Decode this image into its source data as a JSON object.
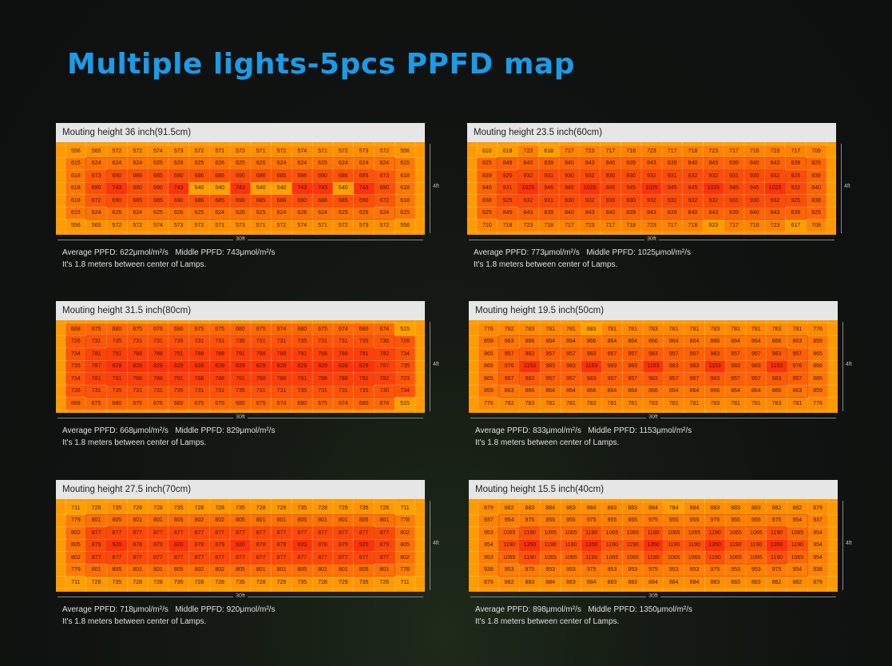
{
  "page_title": "Multiple lights-5pcs PPFD map",
  "chart_data": [
    {
      "type": "heatmap",
      "title": "Mouting height 36 inch(91.5cm)",
      "width_label": "30ft",
      "depth_label": "4ft",
      "average_text": "Average PPFD: 622μmol/m²/s",
      "middle_text": "Middle PPFD: 743μmol/m²/s",
      "note": "It's 1.8 meters between center of Lamps.",
      "values": [
        [
          556,
          565,
          572,
          572,
          574,
          573,
          572,
          571,
          573,
          571,
          572,
          574,
          571,
          572,
          573,
          572,
          556
        ],
        [
          615,
          624,
          624,
          624,
          625,
          626,
          625,
          626,
          625,
          626,
          624,
          624,
          625,
          624,
          624,
          624,
          615
        ],
        [
          618,
          673,
          690,
          686,
          685,
          690,
          686,
          685,
          690,
          686,
          685,
          686,
          690,
          686,
          685,
          673,
          618
        ],
        [
          618,
          690,
          743,
          690,
          690,
          743,
          540,
          540,
          743,
          540,
          540,
          743,
          743,
          540,
          743,
          690,
          618
        ],
        [
          618,
          672,
          690,
          685,
          685,
          690,
          686,
          685,
          690,
          685,
          686,
          690,
          686,
          685,
          690,
          672,
          618
        ],
        [
          615,
          624,
          626,
          624,
          625,
          626,
          625,
          624,
          626,
          625,
          624,
          626,
          624,
          625,
          626,
          624,
          615
        ],
        [
          556,
          565,
          572,
          572,
          574,
          573,
          572,
          571,
          573,
          571,
          572,
          574,
          571,
          572,
          573,
          572,
          556
        ]
      ]
    },
    {
      "type": "heatmap",
      "title": "Mouting height 23.5 inch(60cm)",
      "width_label": "30ft",
      "depth_label": "4ft",
      "average_text": "Average PPFD: 773μmol/m²/s",
      "middle_text": "Middle PPFD: 1025μmol/m²/s",
      "note": "It's 1.8 meters between center of Lamps.",
      "values": [
        [
          610,
          618,
          723,
          618,
          717,
          723,
          717,
          718,
          723,
          717,
          718,
          723,
          717,
          716,
          723,
          717,
          709
        ],
        [
          825,
          849,
          843,
          839,
          840,
          843,
          840,
          839,
          843,
          839,
          840,
          843,
          839,
          840,
          843,
          839,
          825
        ],
        [
          839,
          925,
          932,
          931,
          930,
          932,
          930,
          930,
          932,
          931,
          932,
          932,
          931,
          930,
          932,
          925,
          839
        ],
        [
          840,
          931,
          1025,
          946,
          945,
          1025,
          945,
          945,
          1025,
          945,
          945,
          1025,
          945,
          945,
          1025,
          932,
          840
        ],
        [
          838,
          925,
          932,
          931,
          930,
          932,
          930,
          930,
          932,
          931,
          932,
          932,
          931,
          930,
          932,
          925,
          838
        ],
        [
          825,
          849,
          843,
          839,
          840,
          843,
          840,
          839,
          843,
          839,
          840,
          843,
          839,
          840,
          843,
          839,
          825
        ],
        [
          710,
          718,
          723,
          718,
          717,
          723,
          717,
          718,
          723,
          717,
          718,
          623,
          717,
          716,
          723,
          617,
          709
        ]
      ]
    },
    {
      "type": "heatmap",
      "title": "Mouting height 31.5 inch(80cm)",
      "width_label": "30ft",
      "depth_label": "4ft",
      "average_text": "Average PPFD: 668μmol/m²/s",
      "middle_text": "Middle PPFD: 829μmol/m²/s",
      "note": "It's 1.8 meters between center of Lamps.",
      "values": [
        [
          668,
          675,
          680,
          675,
          676,
          680,
          675,
          675,
          680,
          675,
          674,
          680,
          675,
          674,
          680,
          674,
          515
        ],
        [
          726,
          731,
          735,
          731,
          731,
          735,
          731,
          731,
          735,
          731,
          731,
          735,
          731,
          731,
          735,
          730,
          726
        ],
        [
          734,
          781,
          791,
          788,
          788,
          791,
          788,
          788,
          791,
          788,
          788,
          791,
          788,
          788,
          791,
          782,
          734
        ],
        [
          735,
          787,
          829,
          828,
          829,
          829,
          828,
          828,
          829,
          829,
          828,
          829,
          829,
          828,
          829,
          787,
          735
        ],
        [
          734,
          781,
          791,
          788,
          788,
          791,
          788,
          788,
          791,
          788,
          788,
          791,
          788,
          788,
          791,
          782,
          723
        ],
        [
          726,
          731,
          735,
          731,
          731,
          735,
          731,
          731,
          735,
          731,
          731,
          735,
          731,
          731,
          735,
          730,
          734
        ],
        [
          668,
          675,
          680,
          675,
          676,
          680,
          675,
          675,
          680,
          675,
          674,
          680,
          675,
          674,
          680,
          674,
          515
        ]
      ]
    },
    {
      "type": "heatmap",
      "title": "Mouting height 19.5 inch(50cm)",
      "width_label": "30ft",
      "depth_label": "4ft",
      "average_text": "Average PPFD: 833μmol/m²/s",
      "middle_text": "Middle PPFD: 1153μmol/m²/s",
      "note": "It's 1.8 meters between center of Lamps.",
      "values": [
        [
          776,
          782,
          783,
          781,
          781,
          683,
          781,
          781,
          783,
          781,
          781,
          783,
          781,
          781,
          783,
          781,
          776
        ],
        [
          859,
          863,
          866,
          864,
          864,
          866,
          864,
          864,
          866,
          864,
          864,
          866,
          864,
          864,
          866,
          863,
          859
        ],
        [
          865,
          957,
          983,
          957,
          957,
          983,
          957,
          957,
          983,
          957,
          957,
          983,
          957,
          957,
          983,
          957,
          865
        ],
        [
          866,
          976,
          1153,
          983,
          983,
          1153,
          983,
          983,
          1153,
          983,
          983,
          1153,
          983,
          983,
          1153,
          976,
          866
        ],
        [
          865,
          957,
          983,
          957,
          957,
          983,
          957,
          957,
          983,
          957,
          957,
          983,
          957,
          957,
          983,
          957,
          865
        ],
        [
          859,
          863,
          866,
          864,
          864,
          866,
          864,
          864,
          866,
          864,
          864,
          866,
          864,
          864,
          866,
          863,
          859
        ],
        [
          776,
          782,
          783,
          781,
          781,
          783,
          781,
          781,
          783,
          781,
          781,
          783,
          781,
          781,
          783,
          781,
          776
        ]
      ]
    },
    {
      "type": "heatmap",
      "title": "Mouting height 27.5 inch(70cm)",
      "width_label": "30ft",
      "depth_label": "4ft",
      "average_text": "Average PPFD: 718μmol/m²/s",
      "middle_text": "Middle PPFD: 920μmol/m²/s",
      "note": "It's 1.8 meters between center of Lamps.",
      "values": [
        [
          711,
          726,
          735,
          728,
          728,
          735,
          728,
          728,
          735,
          728,
          729,
          735,
          728,
          729,
          735,
          726,
          711
        ],
        [
          779,
          801,
          805,
          801,
          801,
          805,
          802,
          802,
          805,
          801,
          801,
          805,
          801,
          801,
          805,
          801,
          778
        ],
        [
          802,
          877,
          877,
          877,
          877,
          877,
          877,
          877,
          877,
          877,
          877,
          877,
          877,
          877,
          877,
          877,
          802
        ],
        [
          805,
          879,
          920,
          878,
          879,
          920,
          878,
          879,
          920,
          878,
          879,
          920,
          878,
          879,
          920,
          879,
          805
        ],
        [
          802,
          877,
          877,
          877,
          877,
          877,
          877,
          877,
          877,
          877,
          877,
          877,
          877,
          877,
          877,
          877,
          802
        ],
        [
          779,
          801,
          805,
          801,
          801,
          805,
          802,
          802,
          805,
          801,
          801,
          805,
          801,
          801,
          805,
          801,
          778
        ],
        [
          711,
          726,
          735,
          728,
          728,
          735,
          728,
          728,
          735,
          728,
          729,
          735,
          728,
          729,
          735,
          726,
          711
        ]
      ]
    },
    {
      "type": "heatmap",
      "title": "Mouting height 15.5 inch(40cm)",
      "width_label": "30ft",
      "depth_label": "4ft",
      "average_text": "Average PPFD: 898μmol/m²/s",
      "middle_text": "Middle PPFD: 1350μmol/m²/s",
      "note": "It's 1.8 meters between center of Lamps.",
      "values": [
        [
          879,
          882,
          883,
          884,
          883,
          884,
          883,
          883,
          884,
          784,
          884,
          883,
          883,
          883,
          882,
          882,
          879
        ],
        [
          937,
          954,
          975,
          955,
          955,
          975,
          955,
          955,
          975,
          955,
          955,
          975,
          955,
          955,
          975,
          954,
          937
        ],
        [
          953,
          1065,
          1190,
          1065,
          1065,
          1190,
          1065,
          1065,
          1190,
          1065,
          1065,
          1190,
          1065,
          1065,
          1190,
          1065,
          954
        ],
        [
          954,
          1190,
          1350,
          1190,
          1190,
          1350,
          1190,
          1190,
          1350,
          1190,
          1190,
          1350,
          1190,
          1190,
          1350,
          1190,
          954
        ],
        [
          953,
          1065,
          1190,
          1065,
          1065,
          1190,
          1065,
          1065,
          1190,
          1065,
          1065,
          1190,
          1065,
          1065,
          1190,
          1065,
          954
        ],
        [
          938,
          953,
          975,
          953,
          953,
          975,
          953,
          953,
          975,
          953,
          953,
          975,
          953,
          953,
          975,
          954,
          938
        ],
        [
          879,
          882,
          883,
          884,
          883,
          884,
          883,
          883,
          884,
          884,
          884,
          883,
          883,
          883,
          882,
          882,
          879
        ]
      ]
    }
  ]
}
